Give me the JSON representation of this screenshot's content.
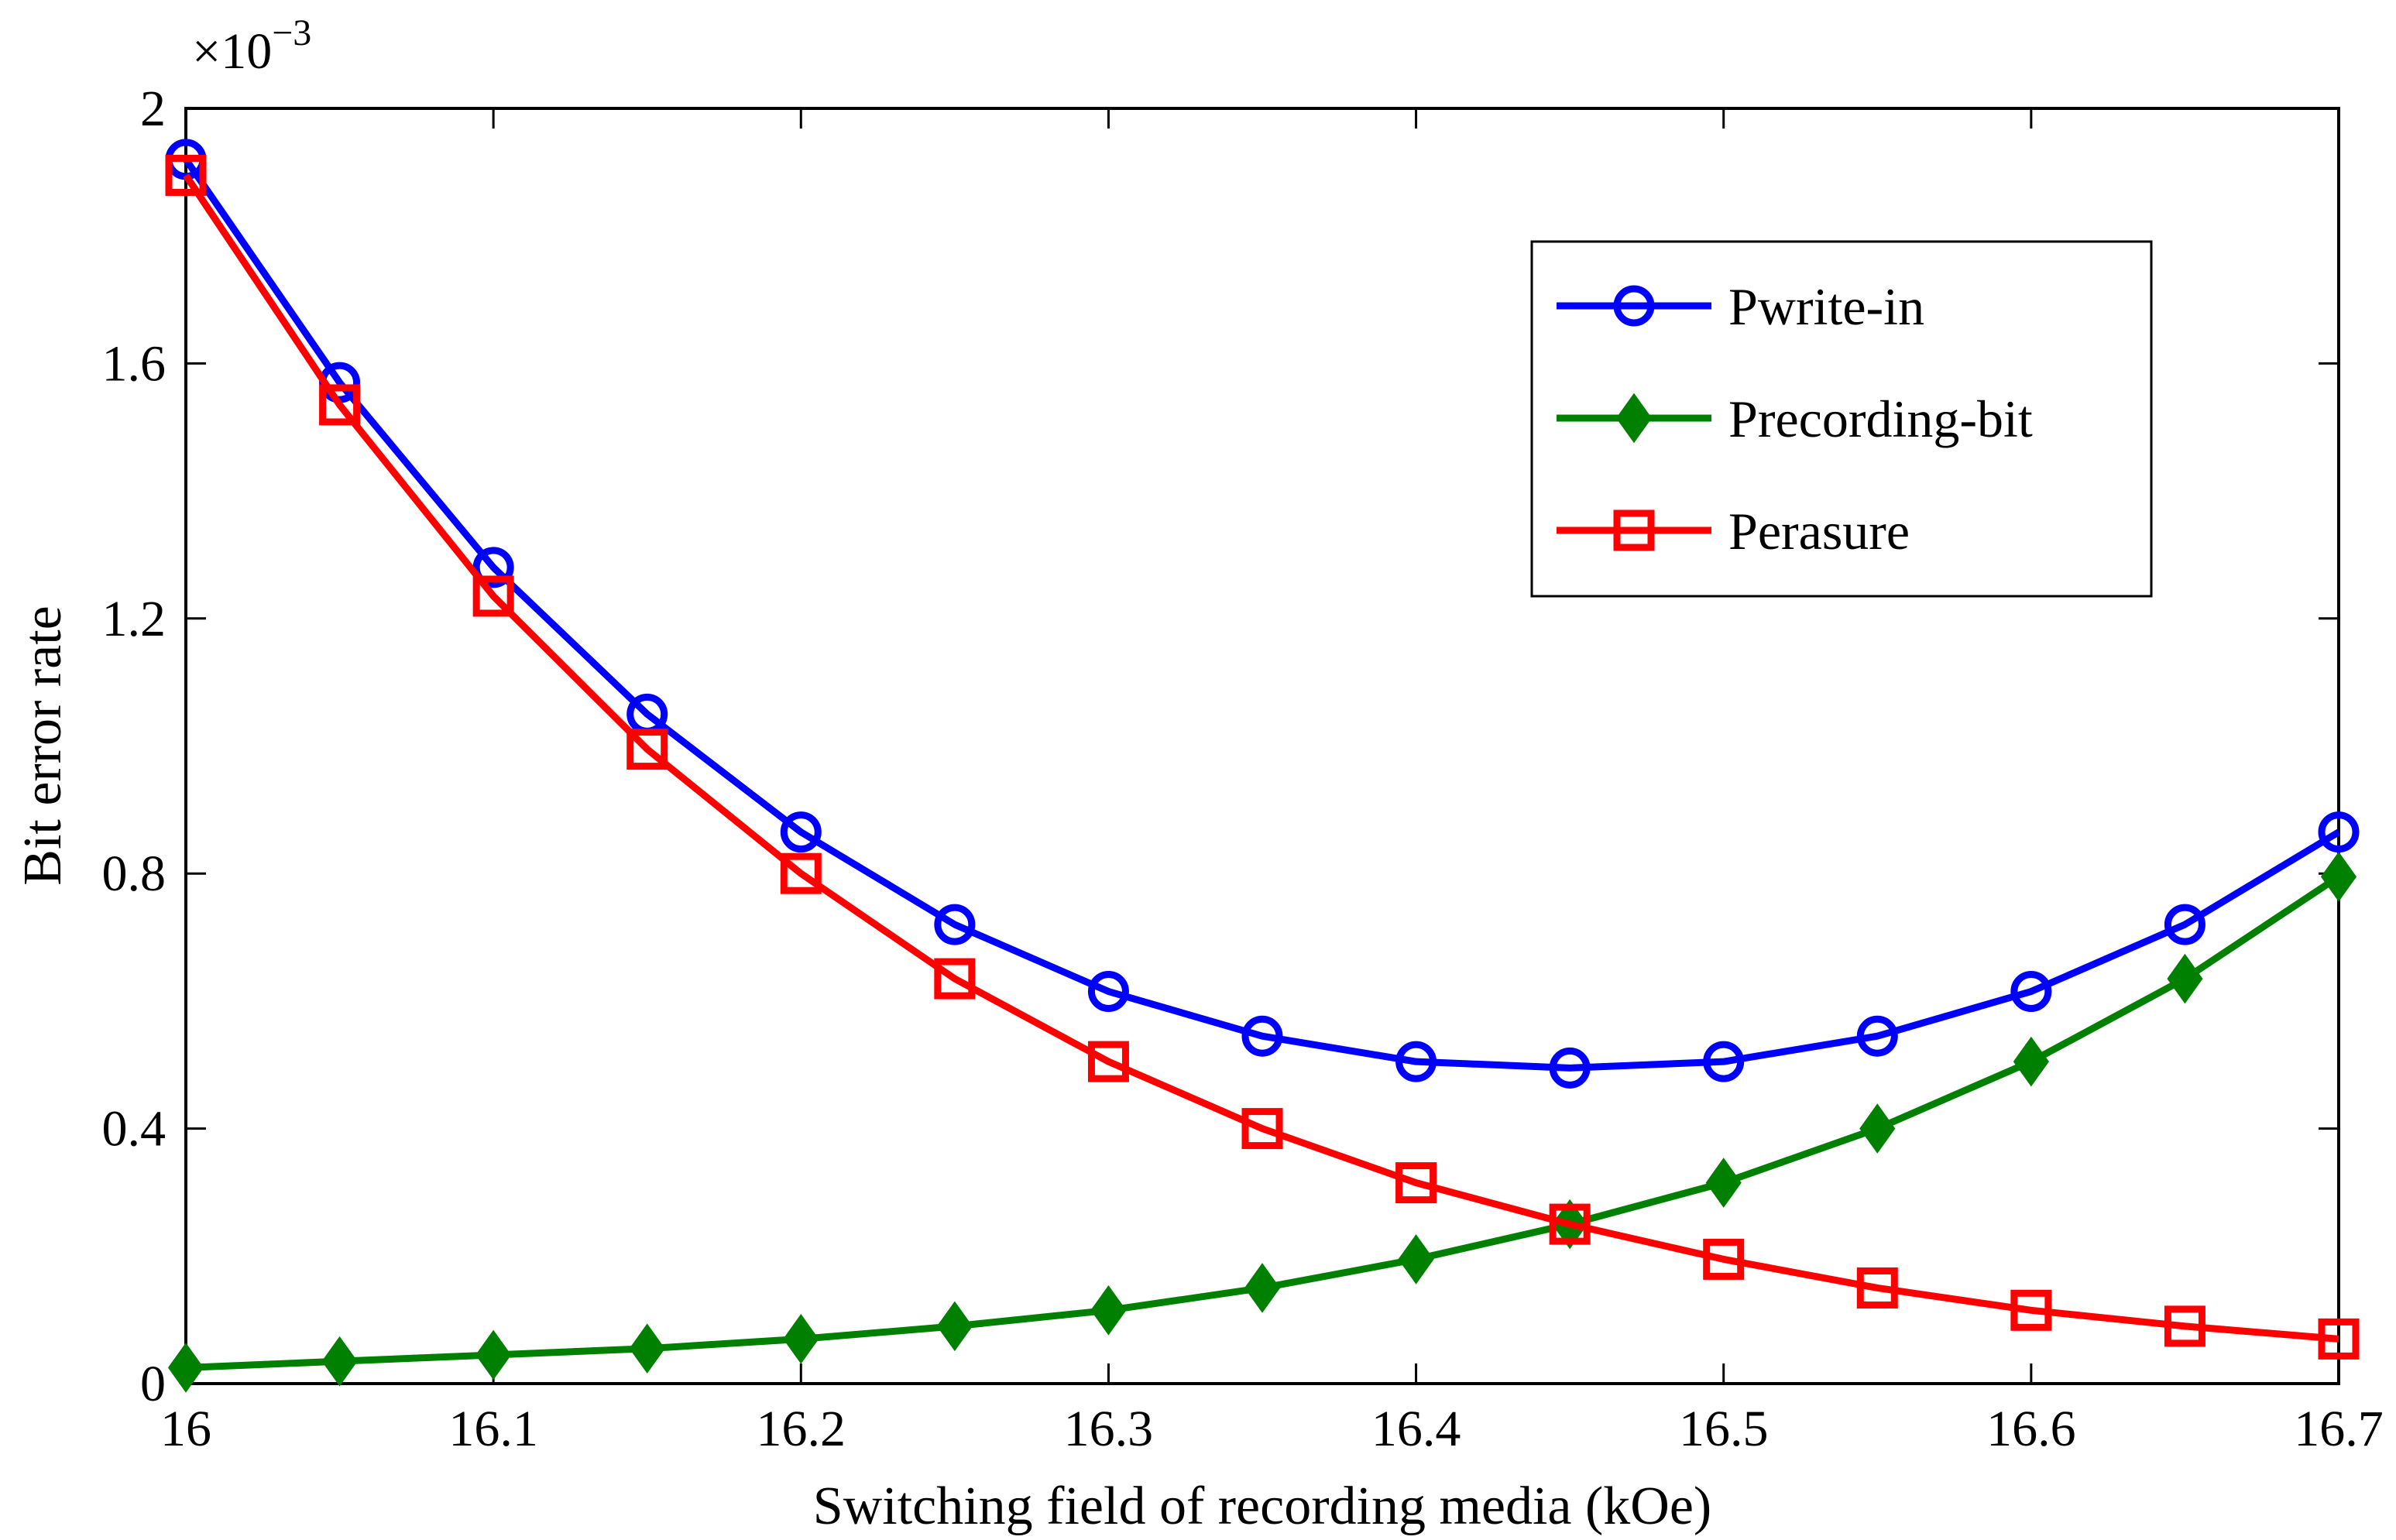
{
  "chart_data": {
    "type": "line",
    "title": "",
    "xlabel": "Switching field of recording media (kOe)",
    "ylabel": "Bit error rate",
    "y_multiplier_label": "×10",
    "y_multiplier_exponent": "−3",
    "xlim": [
      16.0,
      16.7
    ],
    "ylim": [
      0,
      2
    ],
    "xticks": [
      16.0,
      16.1,
      16.2,
      16.3,
      16.4,
      16.5,
      16.6,
      16.7
    ],
    "xtick_labels": [
      "16",
      "16.1",
      "16.2",
      "16.3",
      "16.4",
      "16.5",
      "16.6",
      "16.7"
    ],
    "yticks": [
      0,
      0.4,
      0.8,
      1.2,
      1.6,
      2.0
    ],
    "ytick_labels": [
      "0",
      "0.4",
      "0.8",
      "1.2",
      "1.6",
      "2"
    ],
    "grid": false,
    "legend_position": "top-right",
    "x": [
      16.0,
      16.05,
      16.1,
      16.15,
      16.2,
      16.25,
      16.3,
      16.35,
      16.4,
      16.45,
      16.5,
      16.55,
      16.6,
      16.65,
      16.7
    ],
    "series": [
      {
        "name": "Pwrite-in",
        "color": "#0000ff",
        "marker": "circle",
        "values": [
          1.92,
          1.57,
          1.28,
          1.05,
          0.865,
          0.72,
          0.615,
          0.545,
          0.505,
          0.495,
          0.505,
          0.545,
          0.615,
          0.72,
          0.865
        ]
      },
      {
        "name": "Precording-bit",
        "color": "#008000",
        "marker": "diamond",
        "values": [
          0.025,
          0.035,
          0.045,
          0.055,
          0.07,
          0.09,
          0.115,
          0.15,
          0.195,
          0.25,
          0.315,
          0.4,
          0.505,
          0.635,
          0.795
        ]
      },
      {
        "name": "Perasure",
        "color": "#ff0000",
        "marker": "square",
        "values": [
          1.895,
          1.535,
          1.235,
          0.995,
          0.8,
          0.635,
          0.505,
          0.4,
          0.315,
          0.25,
          0.195,
          0.15,
          0.115,
          0.09,
          0.07
        ]
      }
    ]
  }
}
